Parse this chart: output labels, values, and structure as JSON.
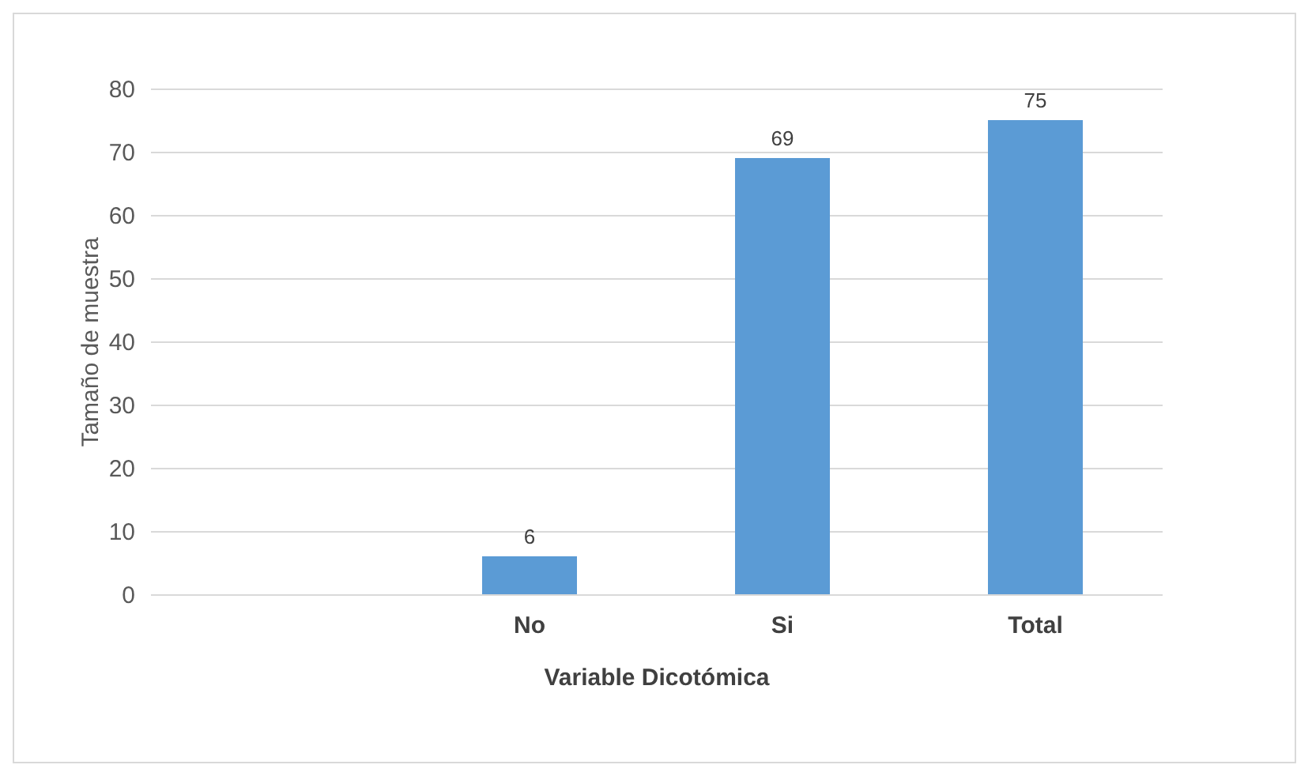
{
  "chart_data": {
    "type": "bar",
    "xlabel": "Variable Dicotómica",
    "ylabel": "Tamaño de muestra",
    "categories": [
      null,
      "No",
      "Si",
      "Total"
    ],
    "values": [
      null,
      6,
      69,
      75
    ],
    "color": "#5b9bd5",
    "ylim": [
      0,
      80
    ],
    "yticks": [
      0,
      10,
      20,
      30,
      40,
      50,
      60,
      70,
      80
    ],
    "grid": "y",
    "data_labels": true
  }
}
